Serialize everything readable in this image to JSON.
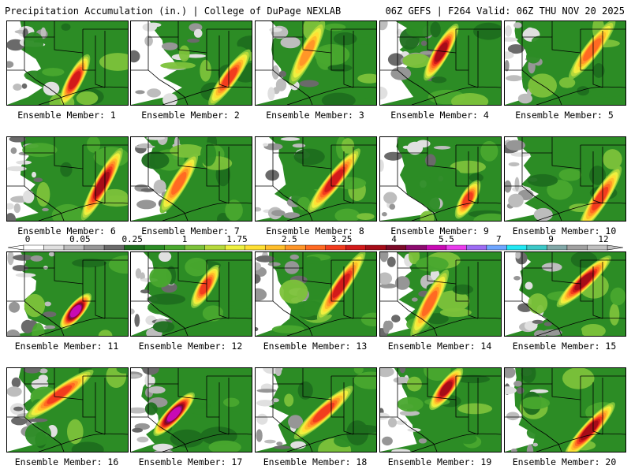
{
  "header": {
    "left": "Precipitation Accumulation (in.) | College of DuPage NEXLAB",
    "right": "06Z GEFS | F264 Valid: 06Z THU NOV 20 2025"
  },
  "members": [
    {
      "label": "Ensemble Member: 1",
      "seed": 11,
      "maxLevel": 7,
      "wet": 0.55
    },
    {
      "label": "Ensemble Member: 2",
      "seed": 23,
      "maxLevel": 6,
      "wet": 0.3
    },
    {
      "label": "Ensemble Member: 3",
      "seed": 37,
      "maxLevel": 4,
      "wet": 0.45
    },
    {
      "label": "Ensemble Member: 4",
      "seed": 41,
      "maxLevel": 8,
      "wet": 0.45
    },
    {
      "label": "Ensemble Member: 5",
      "seed": 53,
      "maxLevel": 5,
      "wet": 0.65
    },
    {
      "label": "Ensemble Member: 6",
      "seed": 67,
      "maxLevel": 8,
      "wet": 0.6
    },
    {
      "label": "Ensemble Member: 7",
      "seed": 71,
      "maxLevel": 5,
      "wet": 0.55
    },
    {
      "label": "Ensemble Member: 8",
      "seed": 83,
      "maxLevel": 7,
      "wet": 0.55
    },
    {
      "label": "Ensemble Member: 9",
      "seed": 97,
      "maxLevel": 6,
      "wet": 0.35
    },
    {
      "label": "Ensemble Member: 10",
      "seed": 101,
      "maxLevel": 6,
      "wet": 0.6
    },
    {
      "label": "Ensemble Member: 11",
      "seed": 113,
      "maxLevel": 11,
      "wet": 0.55
    },
    {
      "label": "Ensemble Member: 12",
      "seed": 127,
      "maxLevel": 6,
      "wet": 0.6
    },
    {
      "label": "Ensemble Member: 13",
      "seed": 131,
      "maxLevel": 7,
      "wet": 0.55
    },
    {
      "label": "Ensemble Member: 14",
      "seed": 149,
      "maxLevel": 5,
      "wet": 0.45
    },
    {
      "label": "Ensemble Member: 15",
      "seed": 151,
      "maxLevel": 8,
      "wet": 0.55
    },
    {
      "label": "Ensemble Member: 16",
      "seed": 163,
      "maxLevel": 6,
      "wet": 0.55
    },
    {
      "label": "Ensemble Member: 17",
      "seed": 173,
      "maxLevel": 11,
      "wet": 0.7
    },
    {
      "label": "Ensemble Member: 18",
      "seed": 181,
      "maxLevel": 6,
      "wet": 0.6
    },
    {
      "label": "Ensemble Member: 19",
      "seed": 191,
      "maxLevel": 8,
      "wet": 0.55
    },
    {
      "label": "Ensemble Member: 20",
      "seed": 199,
      "maxLevel": 8,
      "wet": 0.7
    }
  ],
  "legend": {
    "ticks": [
      "0",
      "0.05",
      "0.25",
      "1",
      "1.75",
      "2.5",
      "3.25",
      "4",
      "5.5",
      "7",
      "9",
      "12"
    ],
    "colors": [
      "#ffffff",
      "#e0e0e0",
      "#bdbdbd",
      "#969696",
      "#6a6a6a",
      "#1e6e1e",
      "#2c8c25",
      "#49a82e",
      "#7cc23a",
      "#b6d93b",
      "#eef03f",
      "#ffe034",
      "#ffbe2a",
      "#ff9628",
      "#ff6a22",
      "#f23c1e",
      "#d21a1a",
      "#a60c18",
      "#7c0a28",
      "#8c0a6e",
      "#c80ab4",
      "#ea3ced",
      "#9d6cf4",
      "#6fa6ff",
      "#22e8f4",
      "#3cc8c8",
      "#82a8a8",
      "#a0a0a0",
      "#bfbfbf"
    ]
  },
  "colors": {
    "landGreen": "#2c8c25",
    "border": "#000000"
  }
}
